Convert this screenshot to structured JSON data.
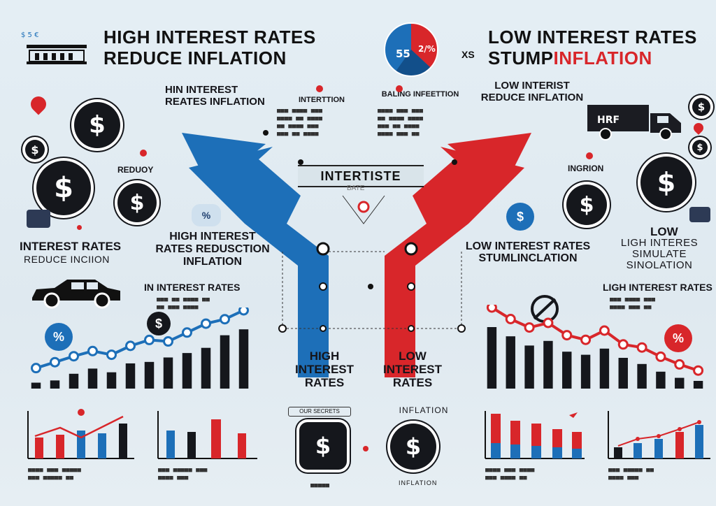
{
  "header": {
    "left_title_line1": "HIGH INTEREST RATES",
    "left_title_line2": "REDUCE INFLATION",
    "vs": "XS",
    "right_title_line1": "LOW INTEREST RATES",
    "right_title_line2_a": "STUMP",
    "right_title_line2_b": "INFLATION",
    "pie_left_label": "55",
    "pie_right_label": "2/%"
  },
  "left": {
    "top_heading": "HIN INTEREST REATES INFLATION",
    "reduoy": "REDUOY",
    "mid_heading_1": "INTEREST RATES",
    "mid_heading_2": "REDUCE INCIION",
    "center_heading": "HIGH INTEREST RATES REDUSCTION INFLATION",
    "car_heading": "IN INTEREST RATES",
    "percent_badge": "%",
    "dollar_badge": "$"
  },
  "center": {
    "col1_title": "INTERTTION",
    "col2_title": "BALING INFEETTION",
    "banner": "INTERTISTE",
    "banner_sub": "BATE",
    "left_arrow_label": "HIGH INTEREST RATES",
    "right_arrow_label": "LOW INTEREST RATES",
    "bottom_left_label": "OUR SECRETS",
    "bottom_right_label": "INFLATION",
    "bottom_right_sub": "INFLATION"
  },
  "right": {
    "top_heading": "LOW INTERIST REDUCE INFLATION",
    "ingrion": "INGRION",
    "low_label": "LOW",
    "low_heading": "LOW INTEREST RATES STUMLINCLATION",
    "ligh_heading": "LIGH INTERES SIMULATE SINOLATION",
    "chart_heading": "LIGH INTEREST RATES",
    "percent_badge": "%",
    "truck_text": "HRF"
  },
  "colors": {
    "red": "#d8262a",
    "blue": "#1d6fb8",
    "dark": "#15171c",
    "background": "#e2ecf2"
  },
  "chart_data": [
    {
      "type": "bar",
      "name": "left-main",
      "values": [
        8,
        11,
        20,
        27,
        22,
        34,
        36,
        42,
        48,
        55,
        72,
        80
      ],
      "line_values": [
        22,
        30,
        38,
        45,
        40,
        52,
        60,
        58,
        70,
        82,
        88,
        100
      ],
      "line_color": "#1d6fb8"
    },
    {
      "type": "bar",
      "name": "right-main",
      "values": [
        80,
        68,
        56,
        62,
        48,
        44,
        52,
        40,
        32,
        22,
        14,
        10
      ],
      "line_values": [
        100,
        85,
        74,
        80,
        64,
        58,
        70,
        52,
        48,
        36,
        26,
        18
      ],
      "line_color": "#d8262a"
    }
  ]
}
